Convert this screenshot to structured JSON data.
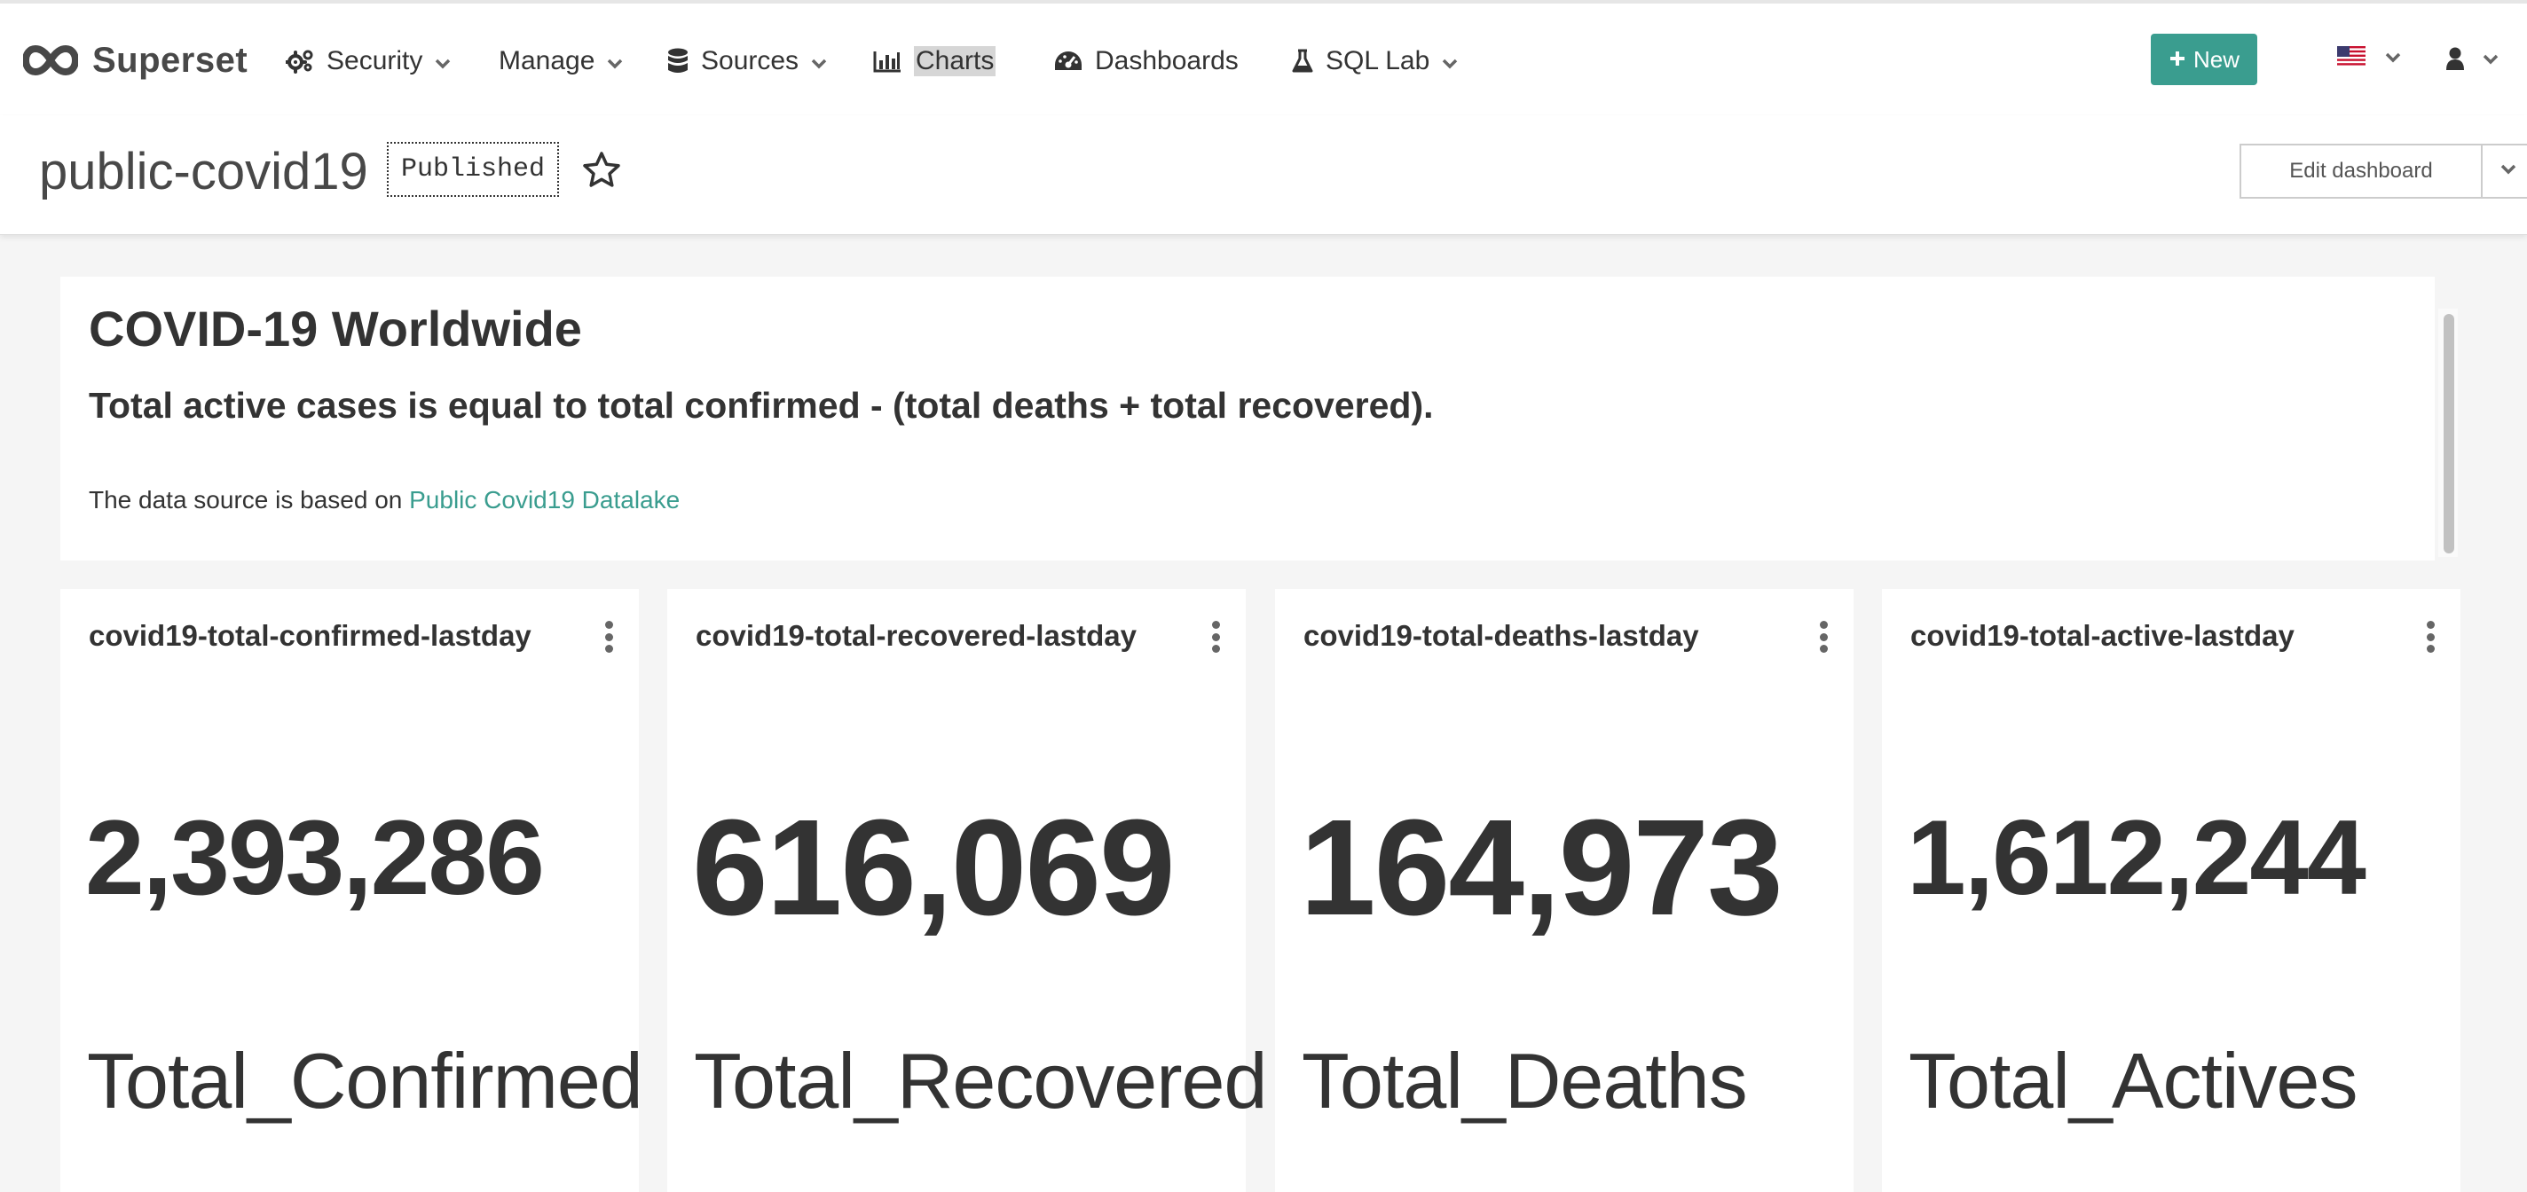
{
  "nav": {
    "brand": "Superset",
    "security": "Security",
    "manage": "Manage",
    "sources": "Sources",
    "charts": "Charts",
    "dashboards": "Dashboards",
    "sql_lab": "SQL Lab",
    "new_button": "New",
    "language_icon": "us-flag-icon",
    "user_icon": "user-icon"
  },
  "header": {
    "title": "public-covid19",
    "status_badge": "Published",
    "edit_button": "Edit dashboard"
  },
  "markdown": {
    "heading": "COVID-19 Worldwide",
    "subheading": "Total active cases is equal to total confirmed - (total deaths + total recovered).",
    "source_prefix": "The data source is based on ",
    "source_link": "Public Covid19 Datalake"
  },
  "cards": [
    {
      "title": "covid19-total-confirmed-lastday",
      "value": "2,393,286",
      "label": "Total_Confirmed"
    },
    {
      "title": "covid19-total-recovered-lastday",
      "value": "616,069",
      "label": "Total_Recovered"
    },
    {
      "title": "covid19-total-deaths-lastday",
      "value": "164,973",
      "label": "Total_Deaths"
    },
    {
      "title": "covid19-total-active-lastday",
      "value": "1,612,244",
      "label": "Total_Actives"
    }
  ],
  "colors": {
    "accent": "#3a9d8f",
    "text": "#333333",
    "background": "#f5f5f5"
  }
}
